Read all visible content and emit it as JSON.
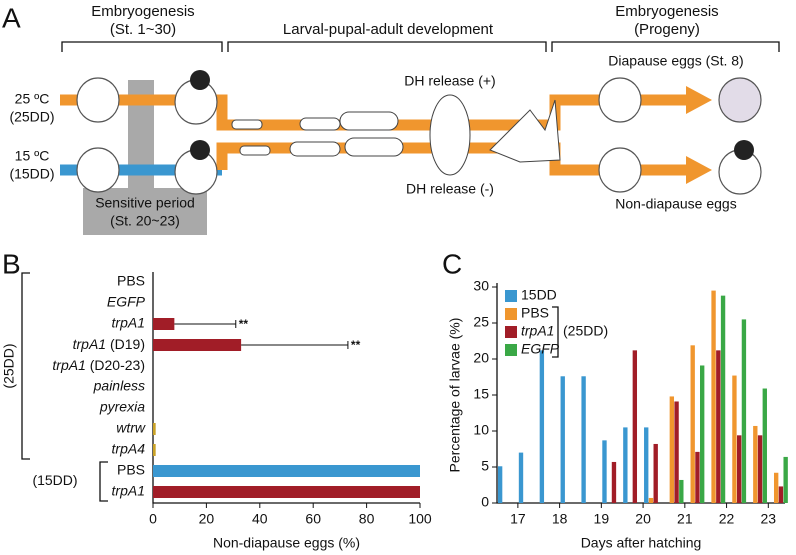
{
  "figure": {
    "panel_labels": [
      "A",
      "B",
      "C"
    ]
  },
  "diagram": {
    "left_header": [
      "Embryogenesis",
      "(St. 1~30)"
    ],
    "middle_header": "Larval-pupal-adult  development",
    "right_header": [
      "Embryogenesis",
      "(Progeny)"
    ],
    "conditions": [
      {
        "temp": "25 ºC",
        "label": "(25DD)"
      },
      {
        "temp": "15 ºC",
        "label": "(15DD)"
      }
    ],
    "dh_plus": "DH release (+)",
    "dh_minus": "DH release (-)",
    "diapause": "Diapause eggs (St. 8)",
    "non_diapause": "Non-diapause eggs",
    "sensitive": [
      "Sensitive period",
      "(St. 20~23)"
    ]
  },
  "chart_data": [
    {
      "type": "hbar",
      "categories": [
        "PBS",
        "EGFP",
        "trpA1",
        "trpA1 (D19)",
        "trpA1 (D20-23)",
        "painless",
        "pyrexia",
        "wtrw",
        "trpA4",
        "PBS",
        "trpA1"
      ],
      "label_style": [
        "normal",
        "italic",
        "italic",
        "italic",
        "italic",
        "italic",
        "italic",
        "italic",
        "italic",
        "normal",
        "italic"
      ],
      "values": [
        0,
        0,
        8,
        33,
        0,
        0,
        0,
        1,
        1,
        100,
        100
      ],
      "errors": [
        null,
        null,
        23,
        40,
        null,
        null,
        null,
        null,
        null,
        null,
        null
      ],
      "significance": [
        null,
        null,
        "**",
        "**",
        null,
        null,
        null,
        null,
        null,
        null,
        null
      ],
      "colors": [
        "#a11d27",
        "#a11d27",
        "#a11d27",
        "#a11d27",
        "#a11d27",
        "#a11d27",
        "#a11d27",
        "#c9a227",
        "#c9a227",
        "#3a97d0",
        "#a11d27"
      ],
      "groups": [
        {
          "label": "(25DD)",
          "from": 0,
          "to": 8
        },
        {
          "label": "(15DD)",
          "from": 9,
          "to": 10
        }
      ],
      "xlabel": "Non-diapause eggs (%)",
      "xlim": [
        0,
        100
      ],
      "xticks": [
        0,
        20,
        40,
        60,
        80,
        100
      ]
    },
    {
      "type": "grouped_bar",
      "x": [
        16.5,
        17,
        17.5,
        18,
        18.5,
        19,
        19.5,
        20,
        20.5,
        21,
        21.5,
        22,
        22.5,
        23
      ],
      "series": [
        {
          "name": "15DD",
          "color": "#3a97d0",
          "style": "normal",
          "values": [
            5.1,
            7,
            21.2,
            17.6,
            17.6,
            8.7,
            10.5,
            10.5,
            0,
            0,
            0,
            0,
            0,
            0
          ]
        },
        {
          "name": "PBS",
          "color": "#f0962e",
          "style": "normal",
          "values": [
            0,
            0,
            0,
            0,
            0,
            0,
            0,
            0.7,
            14.8,
            21.9,
            29.5,
            17.7,
            10.7,
            4.2
          ]
        },
        {
          "name": "trpA1",
          "color": "#a11d27",
          "style": "italic",
          "values": [
            0,
            0,
            0,
            0,
            0,
            5.7,
            21.2,
            8.2,
            14.1,
            7.1,
            21.2,
            9.4,
            9.4,
            2.3
          ]
        },
        {
          "name": "EGFP",
          "color": "#3aa846",
          "style": "italic",
          "values": [
            0,
            0,
            0,
            0,
            0,
            0,
            0,
            0,
            3.2,
            19.1,
            28.8,
            25.5,
            15.9,
            6.4
          ]
        }
      ],
      "legend_bracket": {
        "label": "(25DD)",
        "series": [
          1,
          2,
          3
        ]
      },
      "xlabel": "Days after hatching",
      "ylabel": "Percentage of larvae (%)",
      "xlim": [
        16.5,
        23.4
      ],
      "ylim": [
        0,
        30
      ],
      "xticks": [
        17,
        18,
        19,
        20,
        21,
        22,
        23
      ],
      "yticks": [
        0,
        5,
        10,
        15,
        20,
        25,
        30
      ]
    }
  ]
}
